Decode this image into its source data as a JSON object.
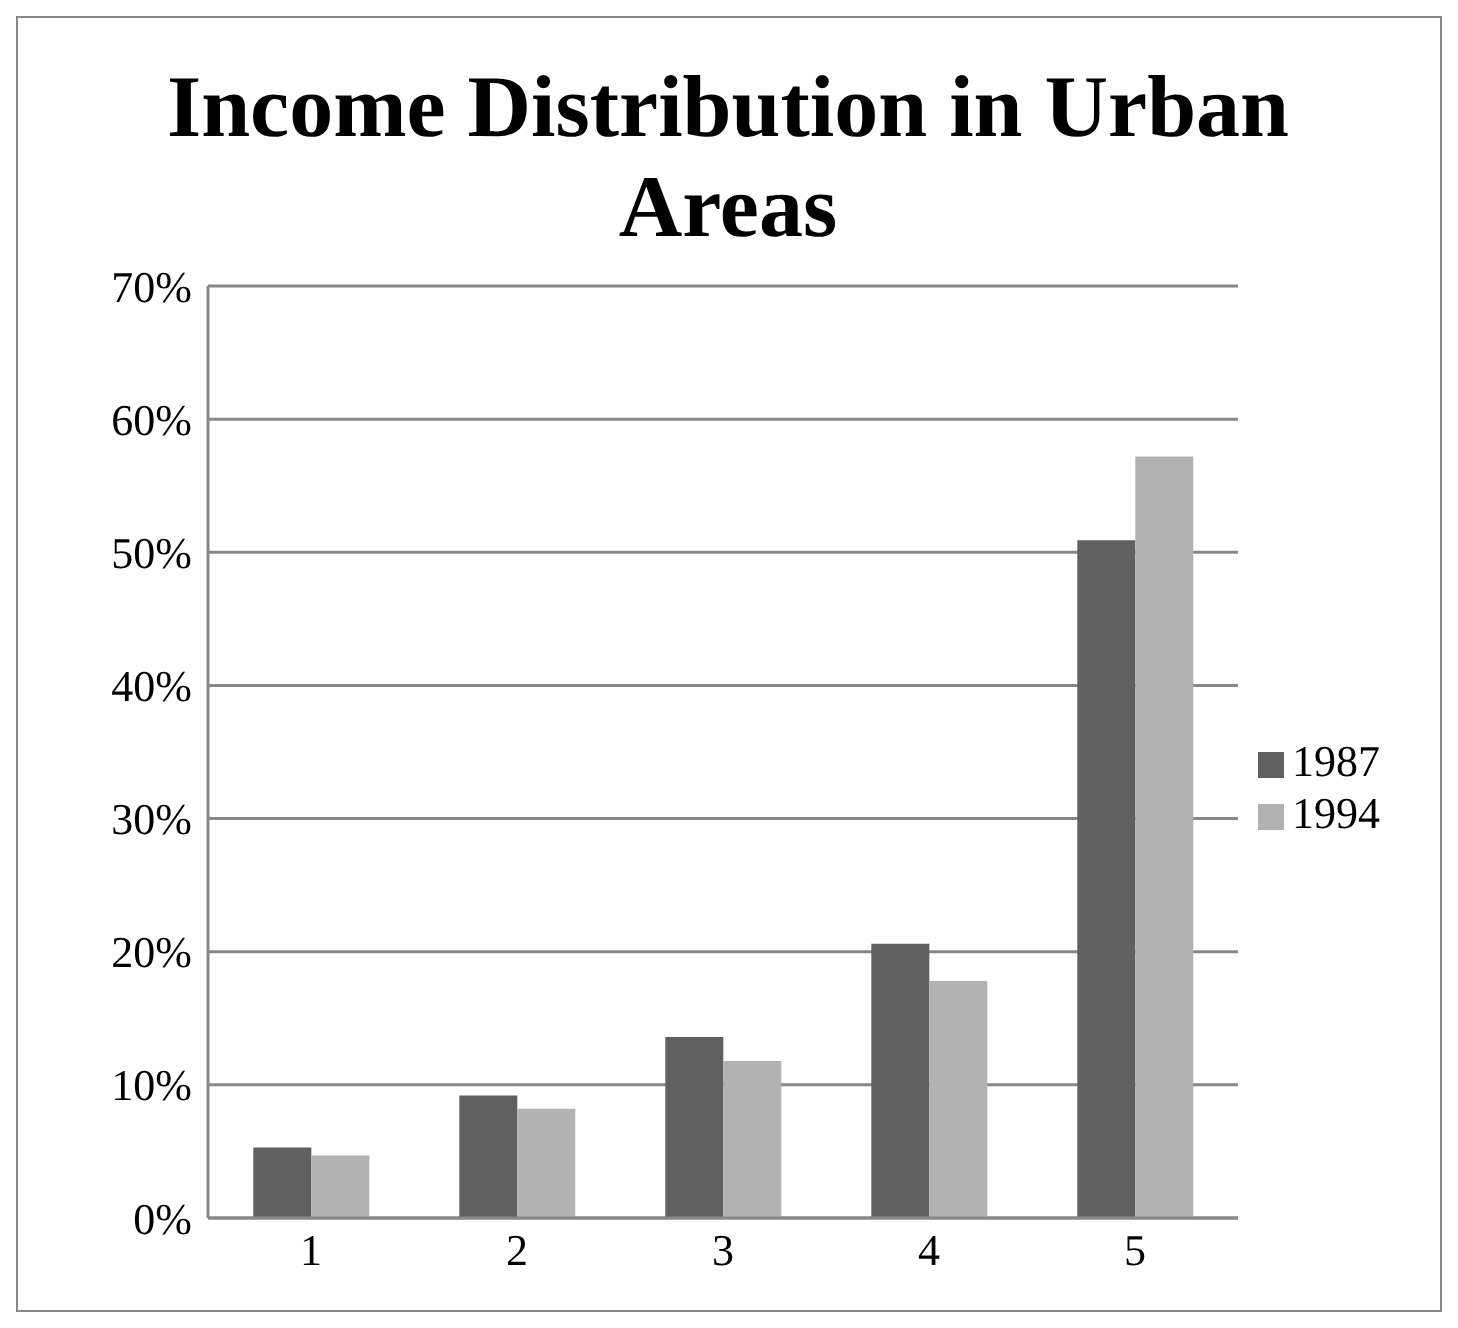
{
  "chart_data": {
    "type": "bar",
    "title": "Income Distribution in Urban Areas",
    "categories": [
      "1",
      "2",
      "3",
      "4",
      "5"
    ],
    "series": [
      {
        "name": "1987",
        "color": "#606060",
        "values": [
          5.3,
          9.2,
          13.6,
          20.6,
          50.9
        ]
      },
      {
        "name": "1994",
        "color": "#b2b2b2",
        "values": [
          4.7,
          8.2,
          11.8,
          17.8,
          57.2
        ]
      }
    ],
    "ylim": [
      0,
      70
    ],
    "yticks": [
      {
        "value": 0,
        "label": "0%"
      },
      {
        "value": 10,
        "label": "10%"
      },
      {
        "value": 20,
        "label": "20%"
      },
      {
        "value": 30,
        "label": "30%"
      },
      {
        "value": 40,
        "label": "40%"
      },
      {
        "value": 50,
        "label": "50%"
      },
      {
        "value": 60,
        "label": "60%"
      },
      {
        "value": 70,
        "label": "70%"
      }
    ],
    "grid": "y",
    "legend": "right"
  }
}
